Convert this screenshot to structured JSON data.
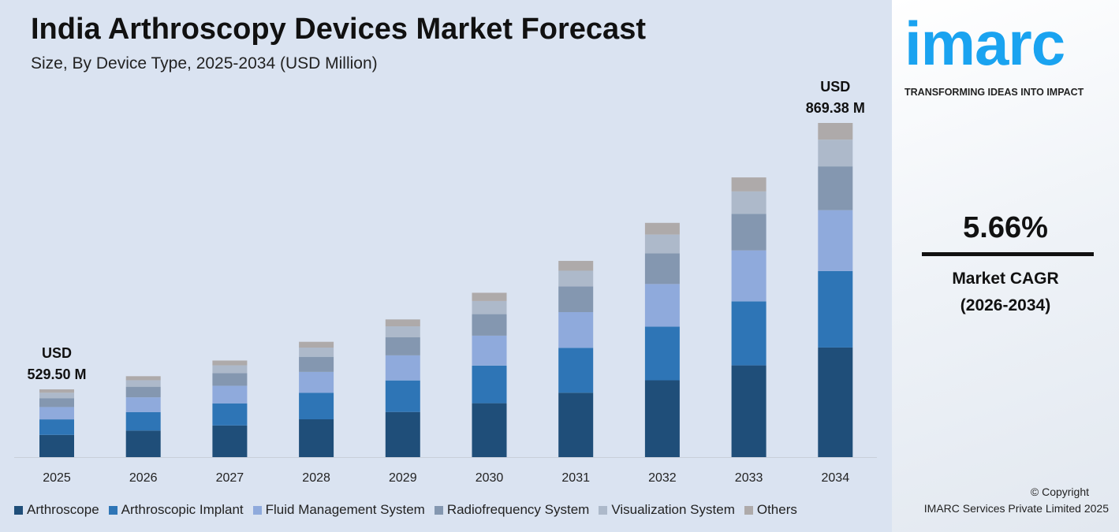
{
  "title": "India Arthroscopy Devices Market Forecast",
  "subtitle": "Size, By Device Type, 2025-2034 (USD Million)",
  "chart_data": {
    "type": "bar",
    "stacked": true,
    "title": "India Arthroscopy Devices Market Forecast",
    "subtitle": "Size, By Device Type, 2025-2034 (USD Million)",
    "categories": [
      "2025",
      "2026",
      "2027",
      "2028",
      "2029",
      "2030",
      "2031",
      "2032",
      "2033",
      "2034"
    ],
    "totals": [
      529.5,
      559.5,
      591.1,
      624.6,
      660.0,
      697.3,
      736.8,
      778.5,
      822.6,
      869.38
    ],
    "series": [
      {
        "name": "Arthroscope",
        "color": "#1f4e79",
        "share": 0.328
      },
      {
        "name": "Arthroscopic Implant",
        "color": "#2e75b6",
        "share": 0.229
      },
      {
        "name": "Fluid Management System",
        "color": "#8faadc",
        "share": 0.182
      },
      {
        "name": "Radiofrequency System",
        "color": "#8497b0",
        "share": 0.131
      },
      {
        "name": "Visualization System",
        "color": "#adb9ca",
        "share": 0.08
      },
      {
        "name": "Others",
        "color": "#aeaaaa",
        "share": 0.05
      }
    ],
    "annotations": [
      {
        "category": "2025",
        "line1": "USD",
        "line2": "529.50 M"
      },
      {
        "category": "2034",
        "line1": "USD",
        "line2": "869.38 M"
      }
    ],
    "legend": "bottom",
    "grid": false
  },
  "side": {
    "logo": "imarc",
    "tagline": "TRANSFORMING IDEAS INTO IMPACT",
    "cagr": "5.66%",
    "cagr_label": "Market CAGR",
    "cagr_period": "(2026-2034)",
    "copyright": "© Copyright",
    "company": "IMARC Services Private Limited 2025"
  }
}
